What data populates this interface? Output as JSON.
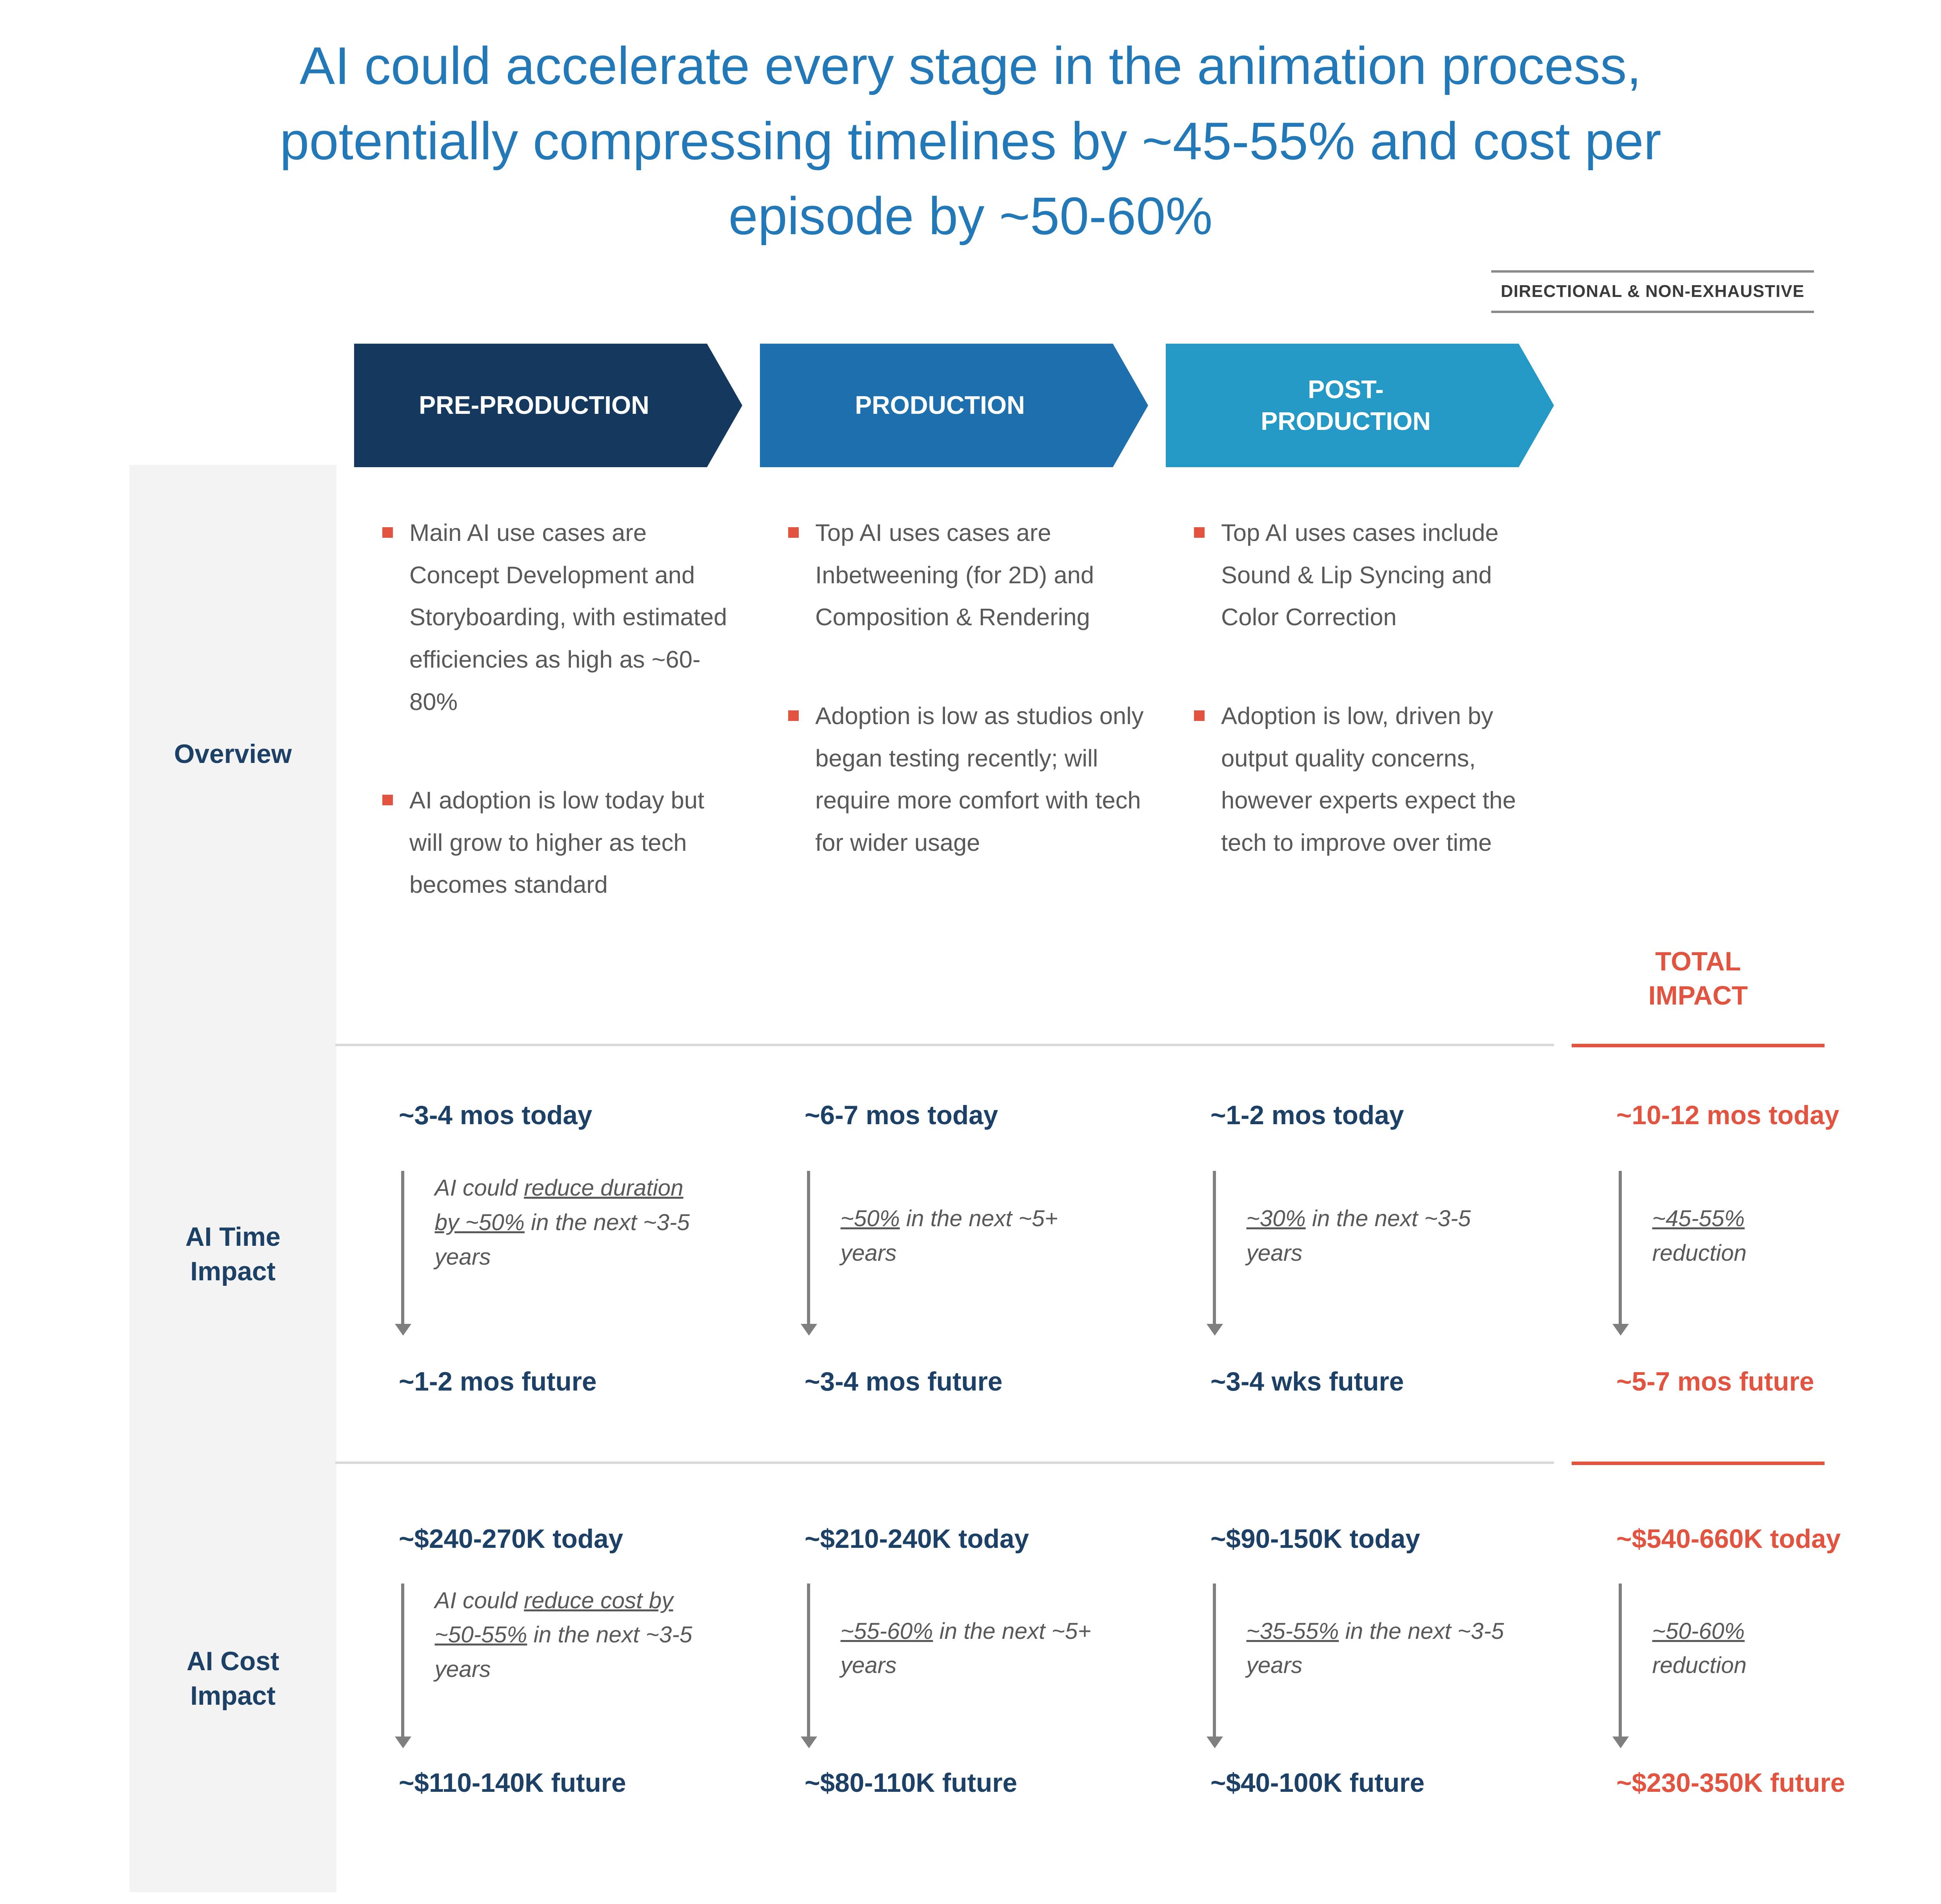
{
  "page": {
    "title": "AI could accelerate every stage in the animation process, potentially compressing timelines by ~45-55% and cost per episode by ~50-60%",
    "disclaimer": "DIRECTIONAL & NON-EXHAUSTIVE"
  },
  "colors": {
    "title_blue": "#2379B8",
    "navy": "#1D4066",
    "accent_red": "#E2543F",
    "stage_preproduction": "#15395E",
    "stage_production": "#1D6FAE",
    "stage_postproduction": "#2599C6",
    "body_gray": "#595959",
    "label_column_bg": "#F3F3F3"
  },
  "stages": [
    {
      "label": "PRE-PRODUCTION"
    },
    {
      "label": "PRODUCTION"
    },
    {
      "label": "POST-PRODUCTION"
    }
  ],
  "total_header": {
    "line1": "TOTAL",
    "line2": "IMPACT"
  },
  "rows": {
    "overview": {
      "label": "Overview",
      "columns": [
        {
          "bullets": [
            "Main AI use cases are Concept Development and Storyboarding, with estimated efficiencies as high as ~60-80%",
            "AI adoption is low today but will grow to higher as tech becomes standard"
          ]
        },
        {
          "bullets": [
            "Top AI uses cases are Inbetweening (for 2D) and Composition & Rendering",
            "Adoption is low as studios only began testing recently; will require more comfort with tech for wider usage"
          ]
        },
        {
          "bullets": [
            "Top AI uses cases include Sound & Lip Syncing and Color Correction",
            "Adoption is low, driven by output quality concerns, however experts expect the tech to improve over time"
          ]
        }
      ]
    },
    "time": {
      "label": "AI Time Impact",
      "cells": [
        {
          "today": "~3-4 mos today",
          "note_pre": "AI could ",
          "note_u": "reduce duration by ~50%",
          "note_post": " in the next ~3-5 years",
          "future": "~1-2 mos future"
        },
        {
          "today": "~6-7 mos today",
          "note_pre": "",
          "note_u": "~50%",
          "note_post": " in the next ~5+ years",
          "future": "~3-4 mos future"
        },
        {
          "today": "~1-2 mos today",
          "note_pre": "",
          "note_u": "~30%",
          "note_post": " in the next ~3-5 years",
          "future": "~3-4 wks future"
        },
        {
          "today": "~10-12 mos today",
          "note_pre": "",
          "note_u": "~45-55%",
          "note_post": " reduction",
          "future": "~5-7 mos future"
        }
      ]
    },
    "cost": {
      "label": "AI Cost Impact",
      "cells": [
        {
          "today": "~$240-270K today",
          "note_pre": "AI could ",
          "note_u": "reduce cost by ~50-55%",
          "note_post": " in the next ~3-5 years",
          "future": "~$110-140K future"
        },
        {
          "today": "~$210-240K today",
          "note_pre": "",
          "note_u": "~55-60%",
          "note_post": " in the next ~5+ years",
          "future": "~$80-110K future"
        },
        {
          "today": "~$90-150K today",
          "note_pre": "",
          "note_u": "~35-55%",
          "note_post": " in the next ~3-5 years",
          "future": "~$40-100K future"
        },
        {
          "today": "~$540-660K today",
          "note_pre": "",
          "note_u": "~50-60%",
          "note_post": " reduction",
          "future": "~$230-350K future"
        }
      ]
    }
  }
}
